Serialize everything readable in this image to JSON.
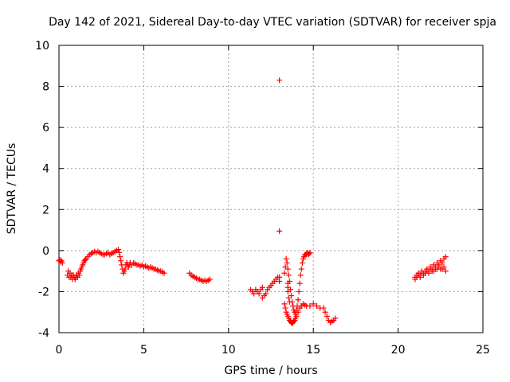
{
  "chart_data": {
    "type": "scatter",
    "title": "Day 142 of 2021, Sidereal Day-to-day VTEC variation (SDTVAR) for receiver spja",
    "xlabel": "GPS time / hours",
    "ylabel": "SDTVAR / TECUs",
    "xlim": [
      0,
      25
    ],
    "ylim": [
      -4,
      10
    ],
    "xticks": [
      0,
      5,
      10,
      15,
      20,
      25
    ],
    "yticks": [
      -4,
      -2,
      0,
      2,
      4,
      6,
      8,
      10
    ],
    "xtick_labels": [
      "0",
      "5",
      "10",
      "15",
      "20",
      "25"
    ],
    "ytick_labels": [
      "-4",
      "-2",
      "0",
      "2",
      "4",
      "6",
      "8",
      "10"
    ],
    "grid": true,
    "marker": "+",
    "color": "#ff0000",
    "series": [
      {
        "name": "SDTVAR",
        "x": [
          0.0,
          0.05,
          0.1,
          0.15,
          0.2,
          0.5,
          0.55,
          0.6,
          0.65,
          0.7,
          0.75,
          0.8,
          0.85,
          0.9,
          0.95,
          1.0,
          1.05,
          1.1,
          1.15,
          1.2,
          1.25,
          1.3,
          1.35,
          1.4,
          1.45,
          1.5,
          1.55,
          1.6,
          1.7,
          1.8,
          1.9,
          2.0,
          2.1,
          2.2,
          2.3,
          2.4,
          2.5,
          2.6,
          2.7,
          2.8,
          2.9,
          3.0,
          3.1,
          3.2,
          3.3,
          3.4,
          3.5,
          3.55,
          3.6,
          3.65,
          3.7,
          3.75,
          3.8,
          3.85,
          3.9,
          3.95,
          4.0,
          4.05,
          4.1,
          4.15,
          4.2,
          4.3,
          4.4,
          4.5,
          4.6,
          4.7,
          4.8,
          4.9,
          5.0,
          5.1,
          5.2,
          5.3,
          5.4,
          5.5,
          5.6,
          5.7,
          5.8,
          5.9,
          6.0,
          6.1,
          6.2,
          7.7,
          7.8,
          7.9,
          8.0,
          8.1,
          8.2,
          8.3,
          8.4,
          8.5,
          8.6,
          8.7,
          8.8,
          8.9,
          11.3,
          11.4,
          11.5,
          11.6,
          11.7,
          11.8,
          11.9,
          12.0,
          12.0,
          12.1,
          12.2,
          12.3,
          12.4,
          12.5,
          12.6,
          12.7,
          12.8,
          12.9,
          13.0,
          13.0,
          13.3,
          13.35,
          13.4,
          13.45,
          13.5,
          13.55,
          13.6,
          13.65,
          13.7,
          13.75,
          13.8,
          13.85,
          13.9,
          13.95,
          14.0,
          14.05,
          14.1,
          14.15,
          14.2,
          14.25,
          14.3,
          14.35,
          14.4,
          14.45,
          14.5,
          14.55,
          14.6,
          14.65,
          14.7,
          14.75,
          14.8,
          13.3,
          13.35,
          13.4,
          13.45,
          13.5,
          13.55,
          13.6,
          13.65,
          13.7,
          13.75,
          13.8,
          13.85,
          13.9,
          13.95,
          14.0,
          14.1,
          14.2,
          14.3,
          14.4,
          14.5,
          14.6,
          14.8,
          15.0,
          15.2,
          15.4,
          15.6,
          15.7,
          15.8,
          15.9,
          16.0,
          16.1,
          16.2,
          16.3,
          13.5,
          13.5,
          13.5,
          13.55,
          13.6,
          13.0,
          13.0,
          21.0,
          21.1,
          21.2,
          21.3,
          21.4,
          21.5,
          21.6,
          21.7,
          21.8,
          21.9,
          22.0,
          22.1,
          22.2,
          22.3,
          22.4,
          22.5,
          22.6,
          22.7,
          22.8,
          21.0,
          21.1,
          21.2,
          21.3,
          21.4,
          21.5,
          21.6,
          21.7,
          21.8,
          21.9,
          22.0,
          22.1,
          22.2,
          22.3,
          22.4,
          22.5,
          22.6,
          22.7,
          22.8
        ],
        "y": [
          -0.5,
          -0.45,
          -0.55,
          -0.5,
          -0.6,
          -1.2,
          -1.0,
          -1.3,
          -1.1,
          -1.3,
          -1.2,
          -1.4,
          -1.2,
          -1.3,
          -1.4,
          -1.3,
          -1.2,
          -1.3,
          -1.1,
          -1.2,
          -1.0,
          -0.9,
          -0.8,
          -0.7,
          -0.6,
          -0.5,
          -0.45,
          -0.4,
          -0.3,
          -0.2,
          -0.15,
          -0.1,
          -0.05,
          -0.1,
          -0.05,
          -0.1,
          -0.15,
          -0.2,
          -0.2,
          -0.15,
          -0.1,
          -0.2,
          -0.15,
          -0.1,
          -0.05,
          0.0,
          0.05,
          -0.1,
          -0.3,
          -0.5,
          -0.7,
          -0.9,
          -1.1,
          -1.0,
          -0.9,
          -0.7,
          -0.6,
          -0.7,
          -0.8,
          -0.7,
          -0.6,
          -0.7,
          -0.6,
          -0.65,
          -0.7,
          -0.7,
          -0.75,
          -0.7,
          -0.8,
          -0.75,
          -0.8,
          -0.85,
          -0.8,
          -0.85,
          -0.9,
          -0.9,
          -0.95,
          -1.0,
          -1.0,
          -1.05,
          -1.1,
          -1.1,
          -1.2,
          -1.25,
          -1.3,
          -1.35,
          -1.4,
          -1.4,
          -1.45,
          -1.5,
          -1.45,
          -1.5,
          -1.45,
          -1.4,
          -1.9,
          -2.0,
          -2.1,
          -1.9,
          -2.0,
          -2.1,
          -1.9,
          -1.8,
          -2.3,
          -2.2,
          -2.1,
          -1.9,
          -1.8,
          -1.7,
          -1.6,
          -1.5,
          -1.4,
          -1.3,
          -1.5,
          -1.3,
          -1.1,
          -0.8,
          -0.4,
          -0.6,
          -0.9,
          -1.2,
          -1.5,
          -1.9,
          -2.2,
          -2.5,
          -2.7,
          -2.9,
          -3.0,
          -3.1,
          -2.9,
          -2.7,
          -2.4,
          -2.0,
          -1.6,
          -1.2,
          -0.9,
          -0.6,
          -0.4,
          -0.3,
          -0.2,
          -0.2,
          -0.15,
          -0.1,
          -0.2,
          -0.15,
          -0.1,
          -2.6,
          -2.8,
          -3.0,
          -3.1,
          -3.2,
          -3.3,
          -3.4,
          -3.45,
          -3.5,
          -3.55,
          -3.5,
          -3.45,
          -3.4,
          -3.3,
          -3.2,
          -3.0,
          -2.8,
          -2.7,
          -2.6,
          -2.65,
          -2.7,
          -2.7,
          -2.6,
          -2.7,
          -2.8,
          -2.8,
          -3.0,
          -3.2,
          -3.4,
          -3.5,
          -3.45,
          -3.4,
          -3.3,
          -1.6,
          -1.8,
          -2.0,
          -2.3,
          -2.5,
          8.3,
          0.95,
          -1.3,
          -1.2,
          -1.1,
          -1.2,
          -1.0,
          -1.1,
          -1.0,
          -0.9,
          -1.0,
          -0.8,
          -0.9,
          -0.7,
          -0.8,
          -0.6,
          -0.7,
          -0.5,
          -0.6,
          -0.4,
          -0.3,
          -1.4,
          -1.3,
          -1.2,
          -1.3,
          -1.1,
          -1.2,
          -1.1,
          -1.0,
          -1.1,
          -0.9,
          -1.0,
          -1.0,
          -0.9,
          -0.9,
          -0.8,
          -0.9,
          -0.9,
          -0.8,
          -1.0
        ]
      }
    ]
  }
}
